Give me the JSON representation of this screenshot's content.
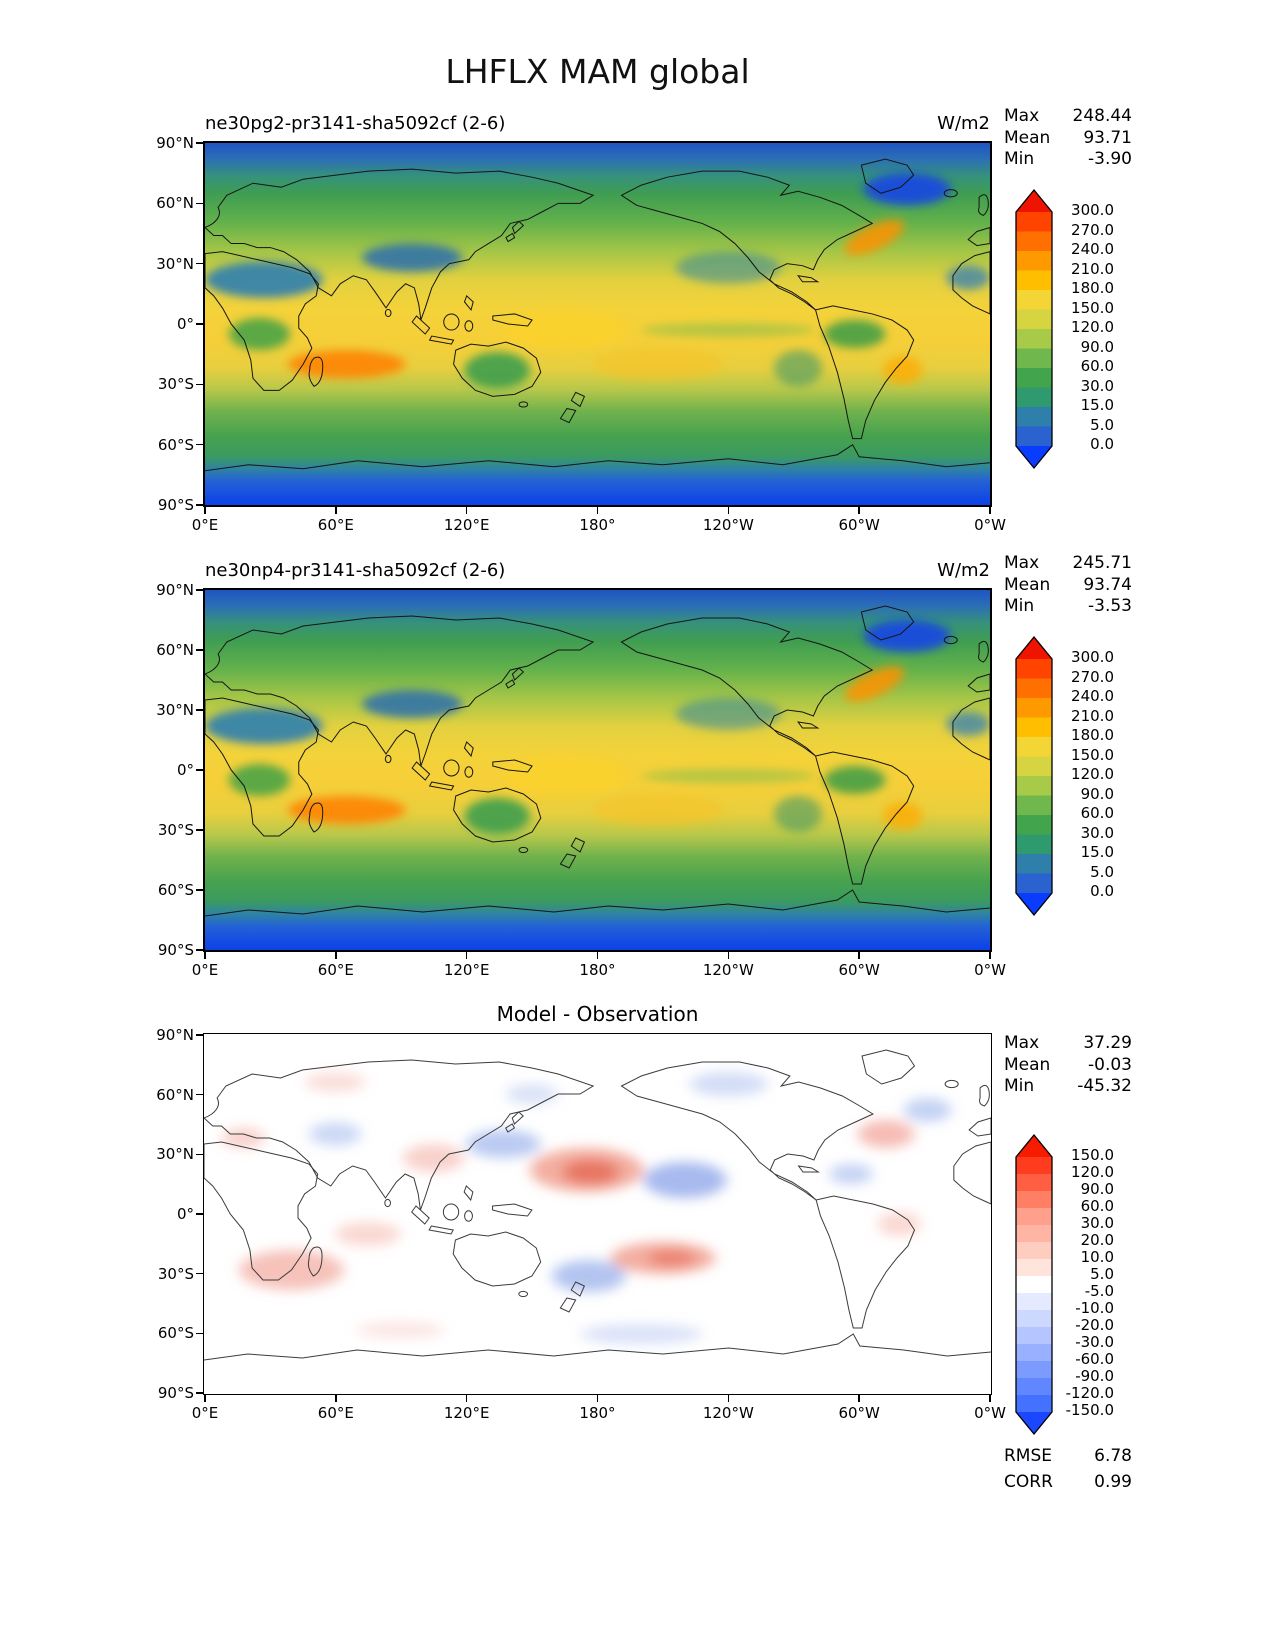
{
  "title": "LHFLX MAM global",
  "axes": {
    "y_ticks": [
      "90°N",
      "60°N",
      "30°N",
      "0°",
      "30°S",
      "60°S",
      "90°S"
    ],
    "x_ticks": [
      "0°E",
      "60°E",
      "120°E",
      "180°",
      "120°W",
      "60°W",
      "0°W"
    ]
  },
  "panels": [
    {
      "title": "ne30pg2-pr3141-sha5092cf (2-6)",
      "units": "W/m2",
      "stats": [
        {
          "label": "Max",
          "value": "248.44"
        },
        {
          "label": "Mean",
          "value": "93.71"
        },
        {
          "label": "Min",
          "value": "-3.90"
        }
      ],
      "colorbar": {
        "tick_labels": [
          "300.0",
          "270.0",
          "240.0",
          "210.0",
          "180.0",
          "150.0",
          "120.0",
          "90.0",
          "60.0",
          "30.0",
          "15.0",
          "5.0",
          "0.0"
        ],
        "segment_colors_top_to_bottom": [
          "#ff4400",
          "#ff7000",
          "#ff9900",
          "#ffbe00",
          "#f3d636",
          "#d6d441",
          "#a8ca49",
          "#70b84d",
          "#42a44c",
          "#2f9a6e",
          "#2f7fab",
          "#2a62cf"
        ],
        "extend_over_color": "#ee1400",
        "extend_under_color": "#0a3cff"
      }
    },
    {
      "title": "ne30np4-pr3141-sha5092cf (2-6)",
      "units": "W/m2",
      "stats": [
        {
          "label": "Max",
          "value": "245.71"
        },
        {
          "label": "Mean",
          "value": "93.74"
        },
        {
          "label": "Min",
          "value": "-3.53"
        }
      ],
      "colorbar": {
        "tick_labels": [
          "300.0",
          "270.0",
          "240.0",
          "210.0",
          "180.0",
          "150.0",
          "120.0",
          "90.0",
          "60.0",
          "30.0",
          "15.0",
          "5.0",
          "0.0"
        ],
        "segment_colors_top_to_bottom": [
          "#ff4400",
          "#ff7000",
          "#ff9900",
          "#ffbe00",
          "#f3d636",
          "#d6d441",
          "#a8ca49",
          "#70b84d",
          "#42a44c",
          "#2f9a6e",
          "#2f7fab",
          "#2a62cf"
        ],
        "extend_over_color": "#ee1400",
        "extend_under_color": "#0a3cff"
      }
    },
    {
      "title": "Model - Observation",
      "units": "",
      "stats": [
        {
          "label": "Max",
          "value": "37.29"
        },
        {
          "label": "Mean",
          "value": "-0.03"
        },
        {
          "label": "Min",
          "value": "-45.32"
        }
      ],
      "extra_stats": [
        {
          "label": "RMSE",
          "value": "6.78"
        },
        {
          "label": "CORR",
          "value": "0.99"
        }
      ],
      "colorbar": {
        "tick_labels": [
          "150.0",
          "120.0",
          "90.0",
          "60.0",
          "30.0",
          "20.0",
          "10.0",
          "5.0",
          "-5.0",
          "-10.0",
          "-20.0",
          "-30.0",
          "-60.0",
          "-90.0",
          "-120.0",
          "-150.0"
        ],
        "segment_colors_top_to_bottom": [
          "#ff3c1e",
          "#ff5e42",
          "#ff7f64",
          "#ffa08c",
          "#ffb5a4",
          "#ffcdc0",
          "#ffe4dc",
          "#ffffff",
          "#e4eaff",
          "#cdd8ff",
          "#b5c5ff",
          "#98b0ff",
          "#7c9bff",
          "#6087ff",
          "#4472ff"
        ],
        "extend_over_color": "#f71b00",
        "extend_under_color": "#1a47ff"
      }
    }
  ],
  "chart_data": [
    {
      "type": "heatmap",
      "subtype": "filled-contour-world-map",
      "figure_title": "LHFLX MAM global",
      "title": "ne30pg2-pr3141-sha5092cf (2-6)",
      "units": "W/m2",
      "xlabel_ticks": [
        "0°E",
        "60°E",
        "120°E",
        "180°",
        "120°W",
        "60°W",
        "0°W"
      ],
      "ylabel_ticks": [
        "90°N",
        "60°N",
        "30°N",
        "0°",
        "30°S",
        "60°S",
        "90°S"
      ],
      "contour_levels": [
        0.0,
        5.0,
        15.0,
        30.0,
        60.0,
        90.0,
        120.0,
        150.0,
        180.0,
        210.0,
        240.0,
        270.0,
        300.0
      ],
      "colorbar_extends_both_ends": true,
      "stats": {
        "max": 248.44,
        "mean": 93.71,
        "min": -3.9
      },
      "palette_description": "blue (low) through green and yellow to red (high)"
    },
    {
      "type": "heatmap",
      "subtype": "filled-contour-world-map",
      "title": "ne30np4-pr3141-sha5092cf (2-6)",
      "units": "W/m2",
      "xlabel_ticks": [
        "0°E",
        "60°E",
        "120°E",
        "180°",
        "120°W",
        "60°W",
        "0°W"
      ],
      "ylabel_ticks": [
        "90°N",
        "60°N",
        "30°N",
        "0°",
        "30°S",
        "60°S",
        "90°S"
      ],
      "contour_levels": [
        0.0,
        5.0,
        15.0,
        30.0,
        60.0,
        90.0,
        120.0,
        150.0,
        180.0,
        210.0,
        240.0,
        270.0,
        300.0
      ],
      "colorbar_extends_both_ends": true,
      "stats": {
        "max": 245.71,
        "mean": 93.74,
        "min": -3.53
      },
      "palette_description": "blue (low) through green and yellow to red (high)"
    },
    {
      "type": "heatmap",
      "subtype": "filled-contour-world-map-difference",
      "title": "Model - Observation",
      "xlabel_ticks": [
        "0°E",
        "60°E",
        "120°E",
        "180°",
        "120°W",
        "60°W",
        "0°W"
      ],
      "ylabel_ticks": [
        "90°N",
        "60°N",
        "30°N",
        "0°",
        "30°S",
        "60°S",
        "90°S"
      ],
      "contour_levels": [
        -150.0,
        -120.0,
        -90.0,
        -60.0,
        -30.0,
        -20.0,
        -10.0,
        -5.0,
        5.0,
        10.0,
        20.0,
        30.0,
        60.0,
        90.0,
        120.0,
        150.0
      ],
      "colorbar_extends_both_ends": true,
      "stats": {
        "max": 37.29,
        "mean": -0.03,
        "min": -45.32,
        "rmse": 6.78,
        "corr": 0.99
      },
      "palette_description": "blue-white-red diverging"
    }
  ]
}
